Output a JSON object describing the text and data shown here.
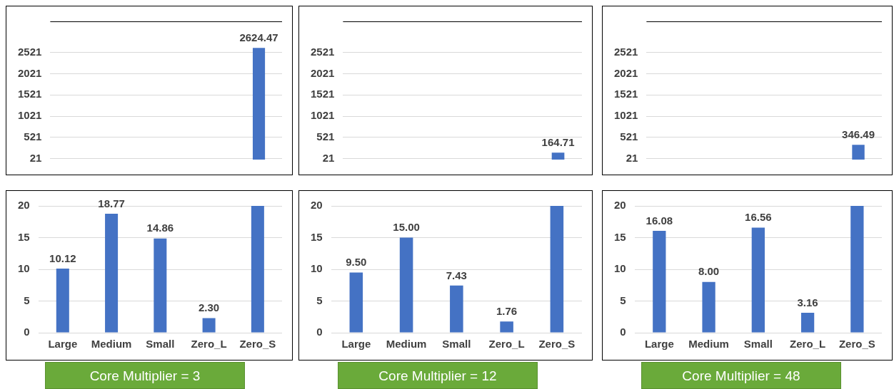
{
  "chart_data": [
    {
      "type": "bar",
      "categories": [
        null,
        null,
        null,
        null,
        null
      ],
      "values": [
        null,
        null,
        null,
        null,
        2624.47
      ],
      "value_labels": [
        null,
        null,
        null,
        null,
        "2624.47"
      ],
      "color": "#4472c4",
      "ylim": [
        0,
        3250
      ],
      "yticks": [
        21,
        521,
        1021,
        1521,
        2021,
        2521
      ],
      "grid": "y",
      "tick_labels": "y"
    },
    {
      "type": "bar",
      "categories": [
        null,
        null,
        null,
        null,
        null
      ],
      "values": [
        null,
        null,
        null,
        null,
        164.71
      ],
      "value_labels": [
        null,
        null,
        null,
        null,
        "164.71"
      ],
      "color": "#4472c4",
      "ylim": [
        0,
        3250
      ],
      "yticks": [
        21,
        521,
        1021,
        1521,
        2021,
        2521
      ],
      "grid": "y",
      "tick_labels": "y"
    },
    {
      "type": "bar",
      "categories": [
        null,
        null,
        null,
        null,
        null
      ],
      "values": [
        null,
        null,
        null,
        null,
        346.49
      ],
      "value_labels": [
        null,
        null,
        null,
        null,
        "346.49"
      ],
      "color": "#4472c4",
      "ylim": [
        0,
        3250
      ],
      "yticks": [
        21,
        521,
        1021,
        1521,
        2021,
        2521
      ],
      "grid": "y",
      "tick_labels": "y"
    },
    {
      "type": "bar",
      "categories": [
        "Large",
        "Medium",
        "Small",
        "Zero_L",
        "Zero_S"
      ],
      "values": [
        10.12,
        18.77,
        14.86,
        2.3,
        20
      ],
      "value_labels": [
        "10.12",
        "18.77",
        "14.86",
        "2.30",
        null
      ],
      "color": "#4472c4",
      "ylim": [
        0,
        20
      ],
      "yticks": [
        0,
        5,
        10,
        15,
        20
      ],
      "grid": "y",
      "annotations": [
        "Core Multiplier = 3"
      ]
    },
    {
      "type": "bar",
      "categories": [
        "Large",
        "Medium",
        "Small",
        "Zero_L",
        "Zero_S"
      ],
      "values": [
        9.5,
        15.0,
        7.43,
        1.76,
        20
      ],
      "value_labels": [
        "9.50",
        "15.00",
        "7.43",
        "1.76",
        null
      ],
      "color": "#4472c4",
      "ylim": [
        0,
        20
      ],
      "yticks": [
        0,
        5,
        10,
        15,
        20
      ],
      "grid": "y",
      "annotations": [
        "Core Multiplier = 12"
      ]
    },
    {
      "type": "bar",
      "categories": [
        "Large",
        "Medium",
        "Small",
        "Zero_L",
        "Zero_S"
      ],
      "values": [
        16.08,
        8.0,
        16.56,
        3.16,
        20
      ],
      "value_labels": [
        "16.08",
        "8.00",
        "16.56",
        "3.16",
        null
      ],
      "color": "#4472c4",
      "ylim": [
        0,
        20
      ],
      "yticks": [
        0,
        5,
        10,
        15,
        20
      ],
      "grid": "y",
      "annotations": [
        "Core Multiplier = 48"
      ]
    }
  ]
}
